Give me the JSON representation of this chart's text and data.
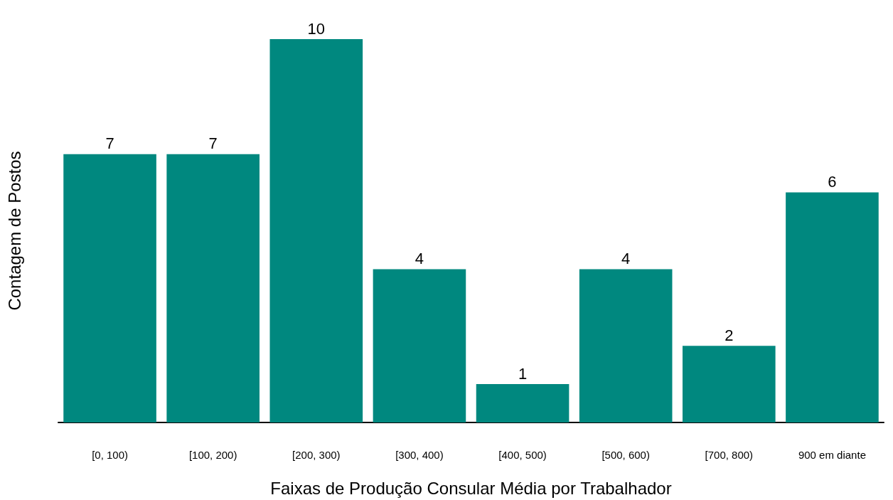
{
  "chart_data": {
    "type": "bar",
    "xlabel": "Faixas de Produção Consular Média por Trabalhador",
    "ylabel": "Contagem de Postos",
    "categories": [
      "[0, 100)",
      "[100, 200)",
      "[200, 300)",
      "[300, 400)",
      "[400, 500)",
      "[500, 600)",
      "[700, 800)",
      "900 em diante"
    ],
    "values": [
      7,
      7,
      10,
      4,
      1,
      4,
      2,
      6
    ],
    "color": "#00887f",
    "data_labels": true
  }
}
